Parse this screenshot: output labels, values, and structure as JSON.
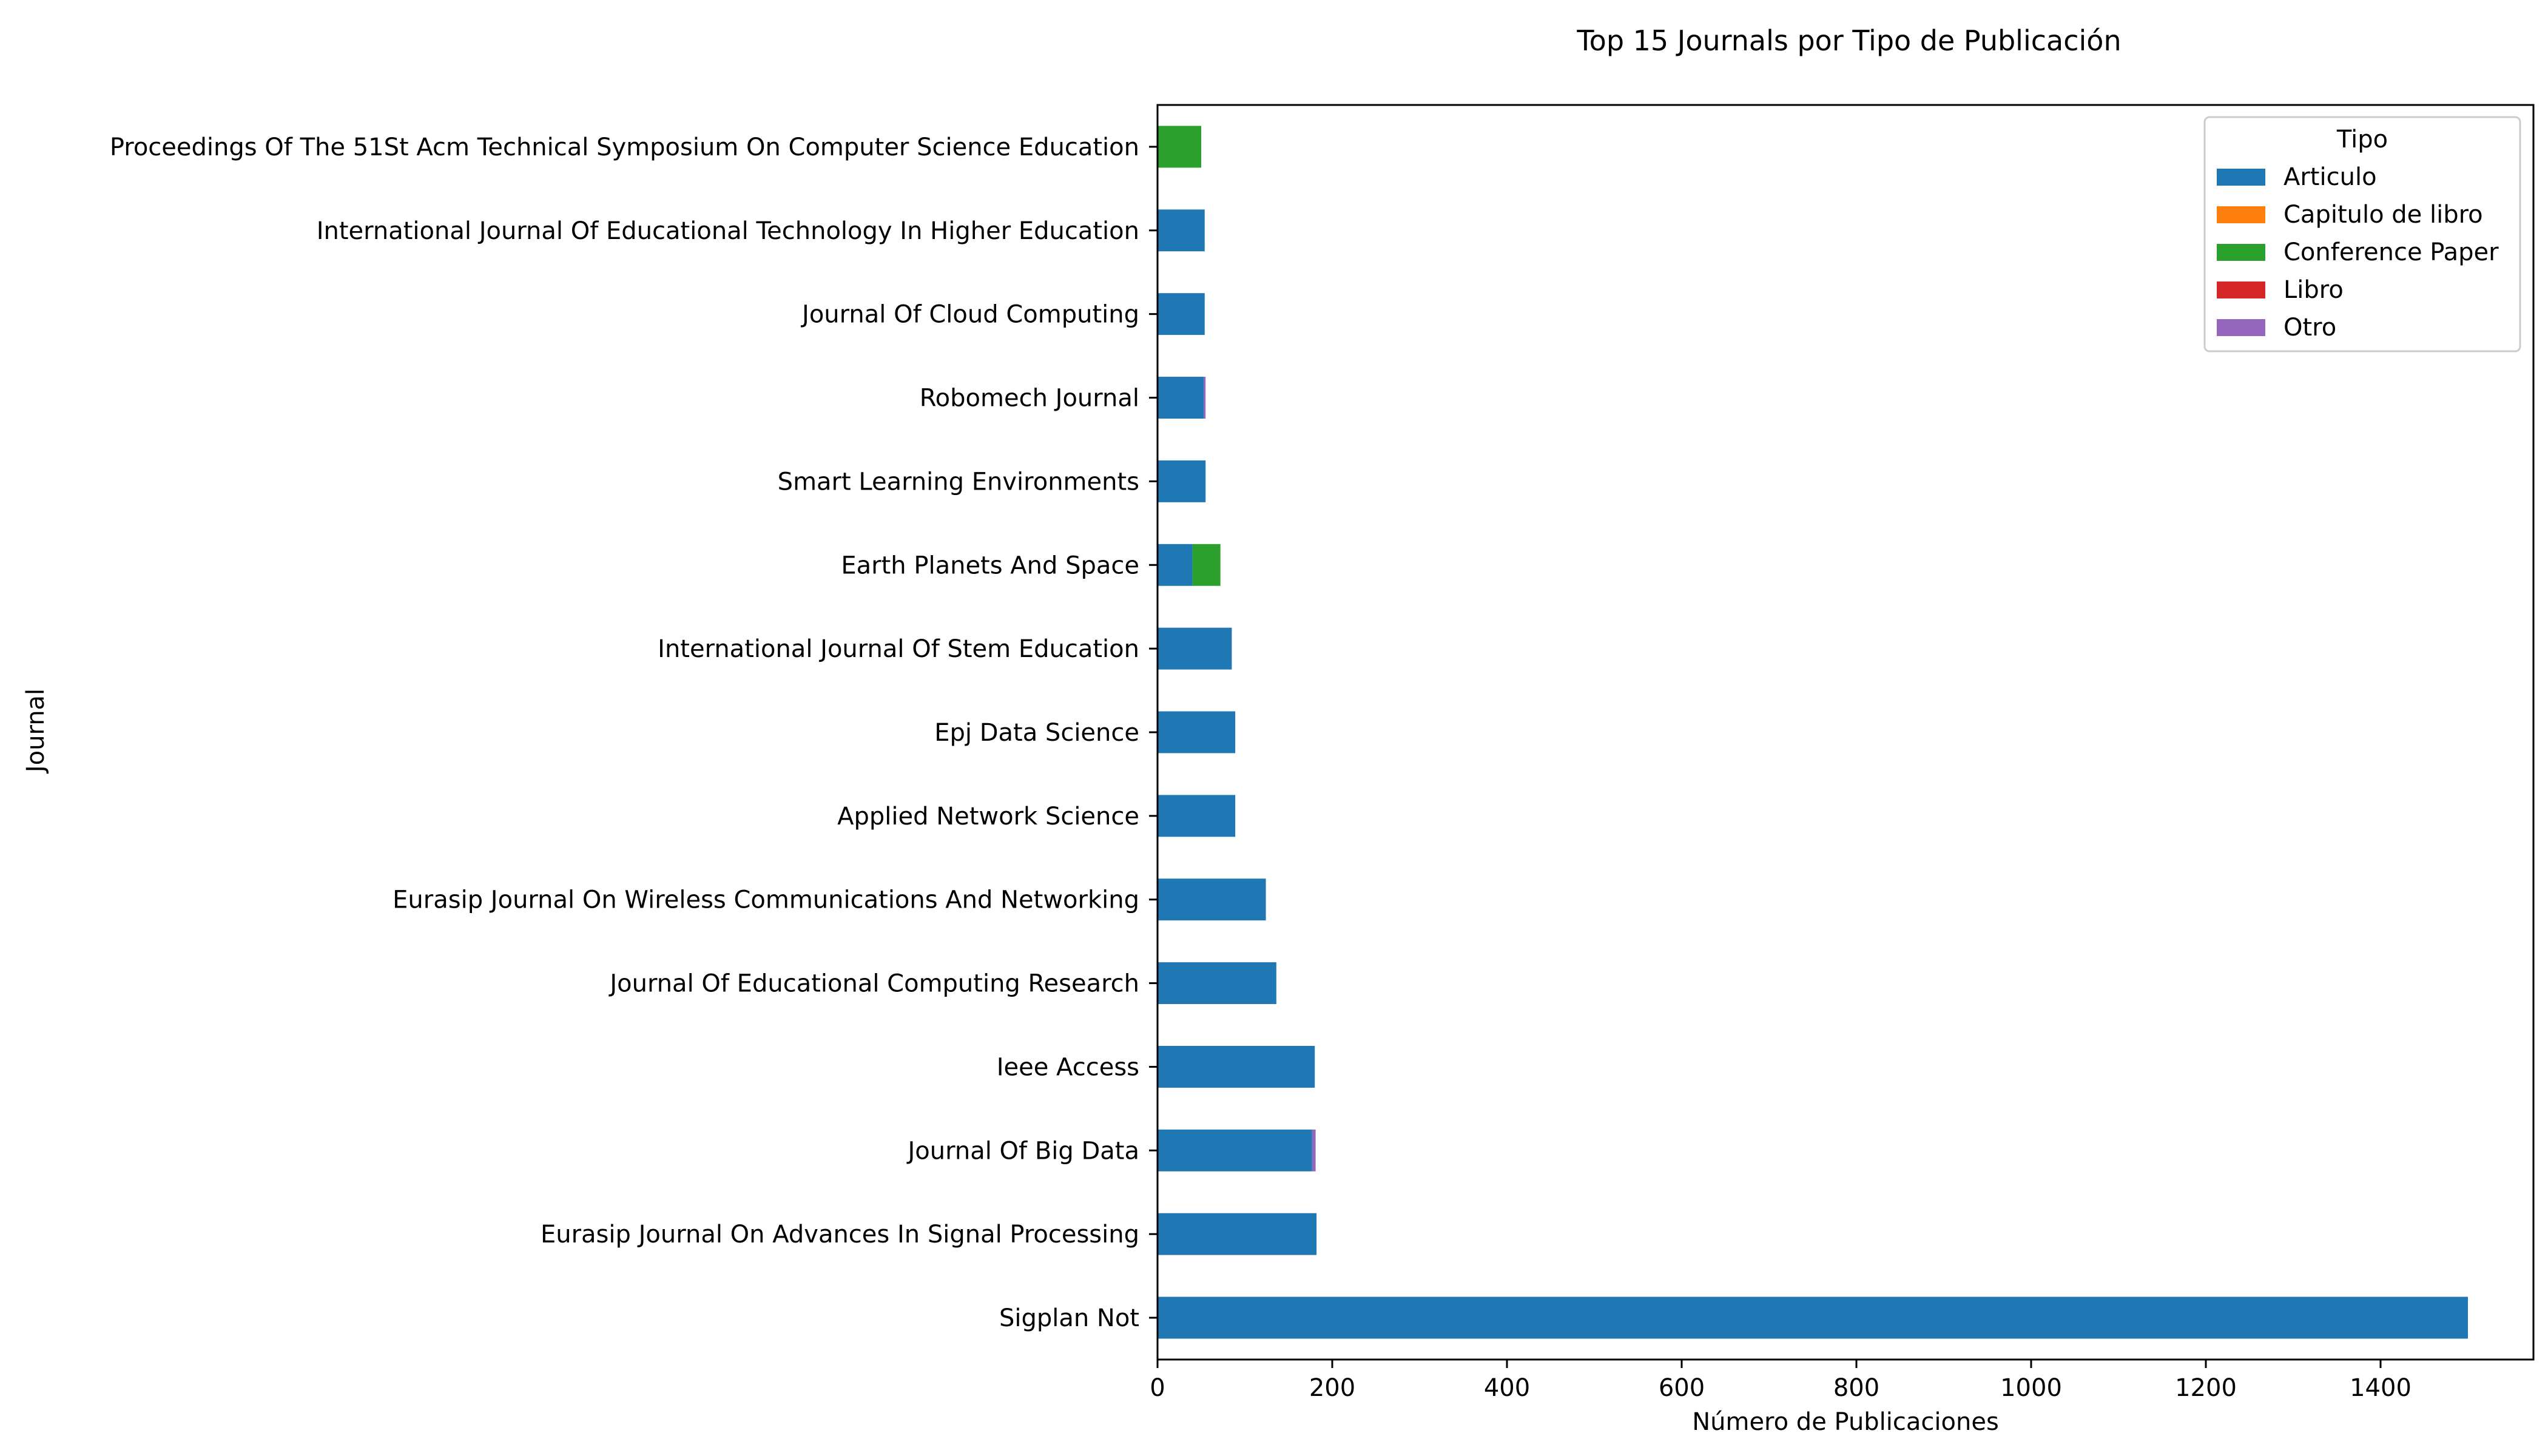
{
  "chart_data": {
    "type": "bar",
    "orientation": "horizontal",
    "stacked": true,
    "title": "Top 15 Journals por Tipo de Publicación",
    "xlabel": "Número de Publicaciones",
    "ylabel": "Journal",
    "xlim": [
      0,
      1575
    ],
    "xticks": [
      0,
      200,
      400,
      600,
      800,
      1000,
      1200,
      1400
    ],
    "grid": false,
    "legend": {
      "title": "Tipo",
      "position": "top-right"
    },
    "categories": [
      "Sigplan Not",
      "Eurasip Journal On Advances In Signal Processing",
      "Journal Of Big Data",
      "Ieee Access",
      "Journal Of Educational Computing Research",
      "Eurasip Journal On Wireless Communications And Networking",
      "Applied Network Science",
      "Epj Data Science",
      "International Journal Of Stem Education",
      "Earth Planets And Space",
      "Smart Learning Environments",
      "Robomech Journal",
      "Journal Of Cloud Computing",
      "International Journal Of Educational Technology In Higher Education",
      "Proceedings Of The 51St Acm Technical Symposium On Computer Science Education"
    ],
    "series": [
      {
        "name": "Articulo",
        "color": "#1f77b4",
        "values": [
          1500,
          182,
          177,
          180,
          136,
          124,
          89,
          89,
          85,
          40,
          55,
          53,
          54,
          54,
          0
        ]
      },
      {
        "name": "Capitulo de libro",
        "color": "#ff7f0e",
        "values": [
          0,
          0,
          0,
          0,
          0,
          0,
          0,
          0,
          0,
          0,
          0,
          0,
          0,
          0,
          0
        ]
      },
      {
        "name": "Conference Paper",
        "color": "#2ca02c",
        "values": [
          0,
          0,
          0,
          0,
          0,
          0,
          0,
          0,
          0,
          32,
          0,
          0,
          0,
          0,
          50
        ]
      },
      {
        "name": "Libro",
        "color": "#d62728",
        "values": [
          0,
          0,
          0,
          0,
          0,
          0,
          0,
          0,
          0,
          0,
          0,
          0,
          0,
          0,
          0
        ]
      },
      {
        "name": "Otro",
        "color": "#9467bd",
        "values": [
          0,
          0,
          4,
          0,
          0,
          0,
          0,
          0,
          0,
          0,
          0,
          2,
          0,
          0,
          0
        ]
      }
    ]
  }
}
